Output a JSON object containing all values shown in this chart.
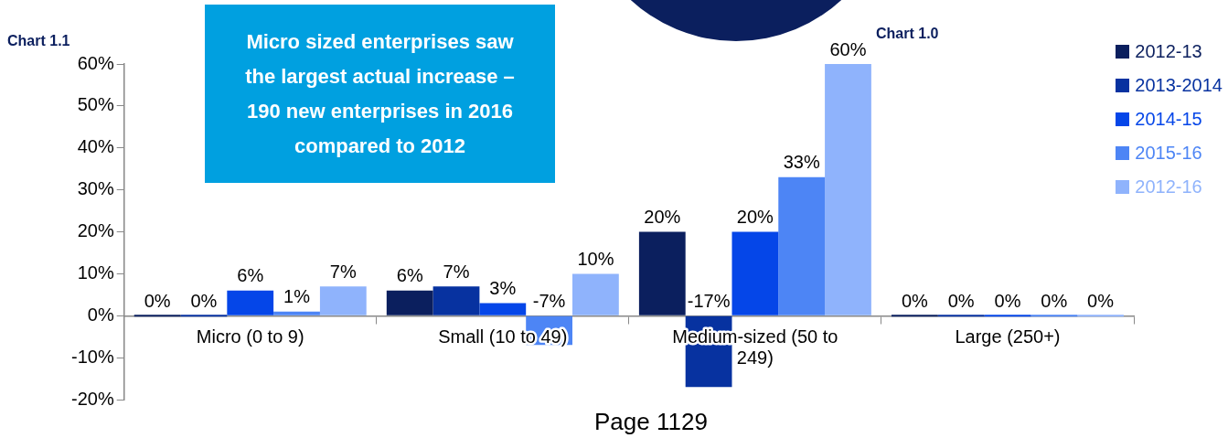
{
  "chart_data": {
    "type": "bar",
    "categories": [
      "Micro (0 to 9)",
      "Small (10 to 49)",
      "Medium-sized (50 to 249)",
      "Large (250+)"
    ],
    "series": [
      {
        "name": "2012-13",
        "color": "#0b1f5e",
        "values": [
          0,
          6,
          20,
          0
        ],
        "value_labels": [
          "0%",
          "6%",
          "20%",
          "0%"
        ]
      },
      {
        "name": "2013-2014",
        "color": "#0732a0",
        "values": [
          0,
          7,
          -17,
          0
        ],
        "value_labels": [
          "0%",
          "7%",
          "-17%",
          "0%"
        ]
      },
      {
        "name": "2014-15",
        "color": "#0546e8",
        "values": [
          6,
          3,
          20,
          0
        ],
        "value_labels": [
          "6%",
          "3%",
          "20%",
          "0%"
        ]
      },
      {
        "name": "2015-16",
        "color": "#4d85f5",
        "values": [
          1,
          -7,
          33,
          0
        ],
        "value_labels": [
          "1%",
          "-7%",
          "33%",
          "0%"
        ]
      },
      {
        "name": "2012-16",
        "color": "#8fb3fc",
        "values": [
          7,
          10,
          60,
          0
        ],
        "value_labels": [
          "7%",
          "10%",
          "60%",
          "0%"
        ]
      }
    ],
    "ylim": [
      -20,
      60
    ],
    "yticks": [
      {
        "value": -20,
        "label": "-20%"
      },
      {
        "value": -10,
        "label": "-10%"
      },
      {
        "value": 0,
        "label": "0%"
      },
      {
        "value": 10,
        "label": "10%"
      },
      {
        "value": 20,
        "label": "20%"
      },
      {
        "value": 30,
        "label": "30%"
      },
      {
        "value": 40,
        "label": "40%"
      },
      {
        "value": 50,
        "label": "50%"
      },
      {
        "value": 60,
        "label": "60%"
      }
    ],
    "grid": false,
    "legend": "top right",
    "annotations": [
      "Micro sized enterprises saw the largest actual increase – 190 new enterprises in 2016 compared to 2012",
      "Chart 1.1",
      "Chart 1.0",
      "Page 1129"
    ]
  }
}
